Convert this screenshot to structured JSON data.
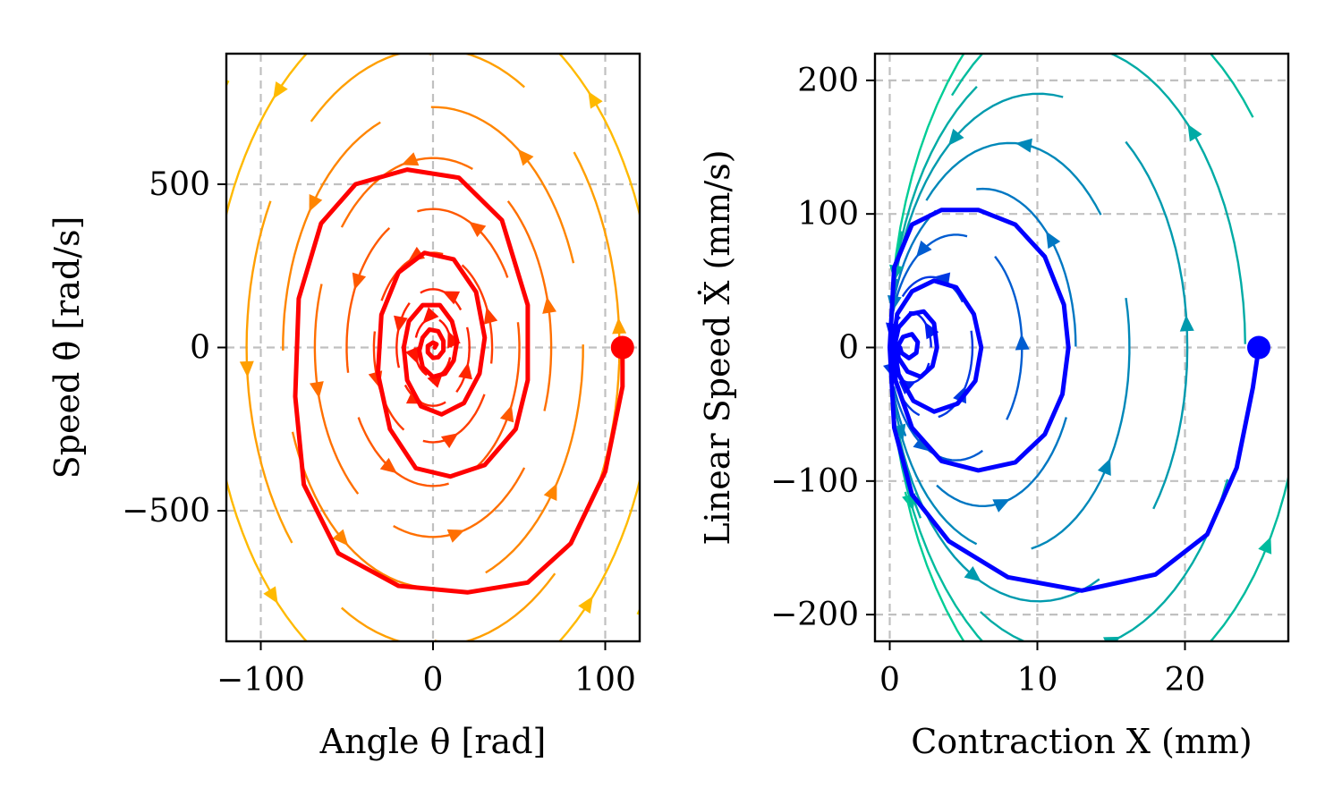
{
  "chart_data": [
    {
      "type": "streamplot",
      "xlabel": "Angle θ [rad]",
      "ylabel": "Speed θ̇ [rad/s]",
      "xlim": [
        -120,
        120
      ],
      "ylim": [
        -900,
        900
      ],
      "xticks": [
        -100,
        0,
        100
      ],
      "xtick_labels": [
        "−100",
        "0",
        "100"
      ],
      "yticks": [
        -500,
        0,
        500
      ],
      "ytick_labels": [
        "−500",
        "0",
        "500"
      ],
      "grid": true,
      "colormap": "autumn",
      "trajectory_color": "#ff0000",
      "trajectory": {
        "start": [
          110,
          0
        ],
        "points": [
          [
            110,
            0
          ],
          [
            110,
            -120
          ],
          [
            100,
            -380
          ],
          [
            80,
            -600
          ],
          [
            55,
            -720
          ],
          [
            20,
            -750
          ],
          [
            -20,
            -730
          ],
          [
            -55,
            -630
          ],
          [
            -75,
            -420
          ],
          [
            -80,
            -150
          ],
          [
            -78,
            150
          ],
          [
            -65,
            380
          ],
          [
            -45,
            500
          ],
          [
            -15,
            545
          ],
          [
            15,
            520
          ],
          [
            40,
            390
          ],
          [
            55,
            130
          ],
          [
            55,
            -100
          ],
          [
            48,
            -250
          ],
          [
            30,
            -360
          ],
          [
            10,
            -395
          ],
          [
            -10,
            -370
          ],
          [
            -25,
            -250
          ],
          [
            -32,
            -80
          ],
          [
            -30,
            100
          ],
          [
            -20,
            230
          ],
          [
            -5,
            290
          ],
          [
            12,
            270
          ],
          [
            25,
            170
          ],
          [
            30,
            30
          ],
          [
            27,
            -80
          ],
          [
            18,
            -170
          ],
          [
            5,
            -205
          ],
          [
            -7,
            -180
          ],
          [
            -15,
            -100
          ],
          [
            -17,
            0
          ],
          [
            -14,
            80
          ],
          [
            -6,
            130
          ],
          [
            4,
            130
          ],
          [
            11,
            80
          ],
          [
            14,
            20
          ],
          [
            12,
            -40
          ],
          [
            7,
            -80
          ],
          [
            0,
            -90
          ],
          [
            -6,
            -60
          ],
          [
            -8,
            -10
          ],
          [
            -6,
            30
          ],
          [
            -2,
            55
          ],
          [
            3,
            50
          ],
          [
            6,
            20
          ],
          [
            6,
            -10
          ],
          [
            3,
            -30
          ],
          [
            0,
            -32
          ],
          [
            -3,
            -15
          ],
          [
            -3,
            5
          ],
          [
            0,
            15
          ],
          [
            2,
            10
          ],
          [
            1,
            0
          ]
        ]
      }
    },
    {
      "type": "streamplot",
      "xlabel": "Contraction X (mm)",
      "ylabel": "Linear Speed Ẋ (mm/s)",
      "xlim": [
        -1,
        27
      ],
      "ylim": [
        -220,
        220
      ],
      "xticks": [
        0,
        10,
        20
      ],
      "xtick_labels": [
        "0",
        "10",
        "20"
      ],
      "yticks": [
        -200,
        -100,
        0,
        100,
        200
      ],
      "ytick_labels": [
        "−200",
        "−100",
        "0",
        "100",
        "200"
      ],
      "grid": true,
      "colormap": "winter",
      "trajectory_color": "#0000ff",
      "trajectory": {
        "start": [
          25,
          0
        ],
        "points": [
          [
            25,
            0
          ],
          [
            24.6,
            -30
          ],
          [
            23.5,
            -90
          ],
          [
            21.5,
            -140
          ],
          [
            18,
            -170
          ],
          [
            13,
            -182
          ],
          [
            8,
            -172
          ],
          [
            4,
            -145
          ],
          [
            1.5,
            -110
          ],
          [
            0.3,
            -60
          ],
          [
            0,
            0
          ],
          [
            0.3,
            60
          ],
          [
            1.5,
            92
          ],
          [
            3.5,
            103
          ],
          [
            6,
            103
          ],
          [
            8.5,
            92
          ],
          [
            10.5,
            68
          ],
          [
            11.8,
            32
          ],
          [
            12.1,
            0
          ],
          [
            11.7,
            -35
          ],
          [
            10.5,
            -65
          ],
          [
            8.5,
            -86
          ],
          [
            6,
            -92
          ],
          [
            3.5,
            -85
          ],
          [
            1.5,
            -60
          ],
          [
            0.4,
            -25
          ],
          [
            0.2,
            0
          ],
          [
            0.5,
            25
          ],
          [
            1.5,
            42
          ],
          [
            3,
            50
          ],
          [
            4.5,
            45
          ],
          [
            5.7,
            25
          ],
          [
            6.2,
            0
          ],
          [
            5.8,
            -25
          ],
          [
            4.6,
            -42
          ],
          [
            3,
            -48
          ],
          [
            1.6,
            -40
          ],
          [
            0.6,
            -20
          ],
          [
            0.3,
            0
          ],
          [
            0.6,
            15
          ],
          [
            1.4,
            25
          ],
          [
            2.3,
            27
          ],
          [
            3,
            18
          ],
          [
            3.2,
            0
          ],
          [
            2.9,
            -14
          ],
          [
            2.1,
            -22
          ],
          [
            1.2,
            -18
          ],
          [
            0.6,
            -8
          ],
          [
            0.5,
            0
          ],
          [
            0.9,
            8
          ],
          [
            1.5,
            10
          ],
          [
            1.9,
            4
          ],
          [
            1.8,
            -4
          ],
          [
            1.3,
            -8
          ],
          [
            0.8,
            -4
          ],
          [
            0.7,
            0
          ]
        ]
      }
    }
  ]
}
